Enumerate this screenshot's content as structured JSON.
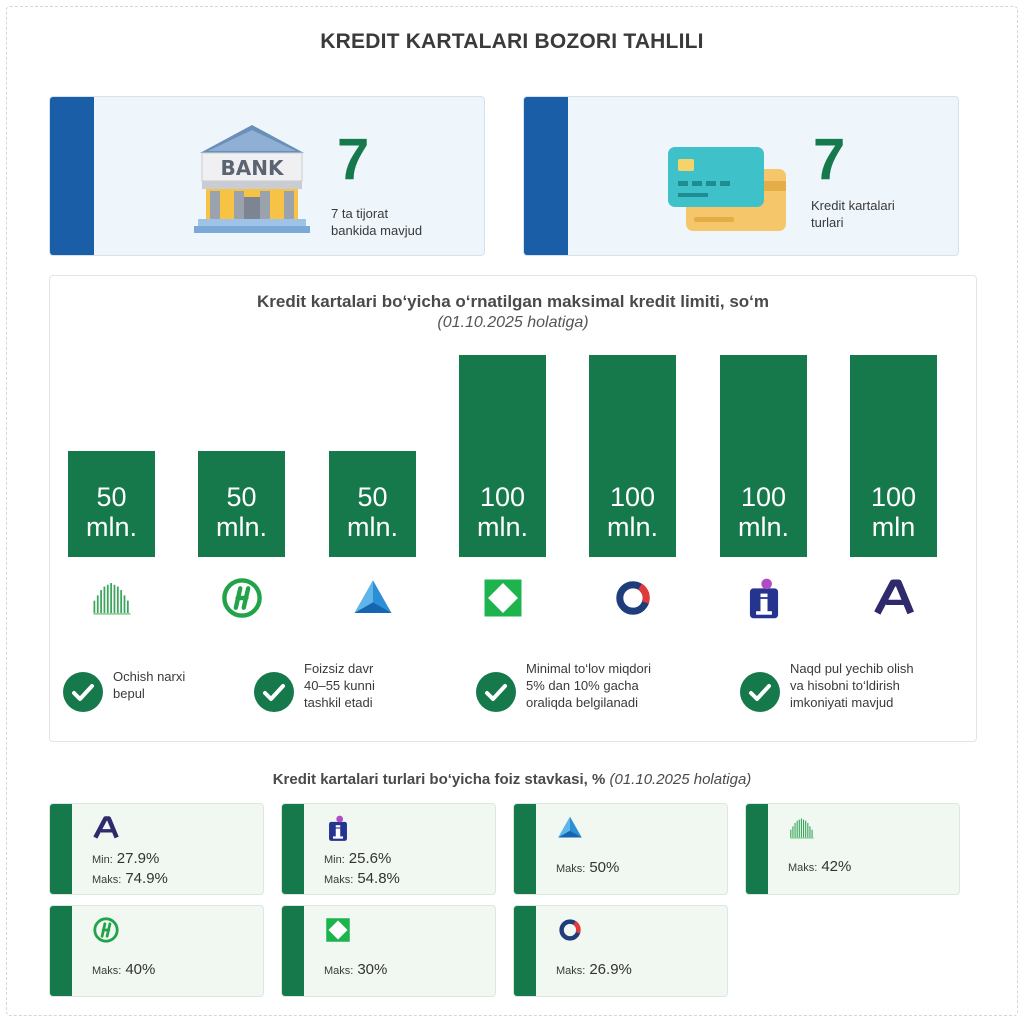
{
  "title": "KREDIT KARTALARI BOZORI TAHLILI",
  "stats": [
    {
      "icon": "bank-icon",
      "value": "7",
      "label_line1": "7 ta tijorat",
      "label_line2": "bankida mavjud"
    },
    {
      "icon": "credit-card-icon",
      "value": "7",
      "label_line1": "Kredit kartalari",
      "label_line2": "turlari"
    }
  ],
  "panel": {
    "title": "Kredit kartalari bo‘yicha o‘rnatilgan maksimal kredit limiti, so‘m",
    "subtitle": "(01.10.2025 holatiga)"
  },
  "chart_data": {
    "type": "bar",
    "title": "Kredit kartalari bo‘yicha o‘rnatilgan maksimal kredit limiti, so‘m",
    "subtitle": "(01.10.2025 holatiga)",
    "values": [
      50,
      50,
      50,
      100,
      100,
      100,
      100
    ],
    "bar_labels": [
      [
        "50",
        "mln."
      ],
      [
        "50",
        "mln."
      ],
      [
        "50",
        "mln."
      ],
      [
        "100",
        "mln."
      ],
      [
        "100",
        "mln."
      ],
      [
        "100",
        "mln."
      ],
      [
        "100",
        "mln"
      ]
    ],
    "category_icons": [
      "bank-logo-bars-icon",
      "bank-logo-h-circle-icon",
      "bank-logo-blue-triangle-icon",
      "bank-logo-green-diamond-icon",
      "bank-logo-ring-icon",
      "bank-logo-i-icon",
      "bank-logo-a-icon"
    ],
    "ylim": [
      0,
      100
    ],
    "grid": false,
    "color": "#16794c"
  },
  "features": [
    {
      "lines": [
        "Ochish narxi",
        "bepul"
      ]
    },
    {
      "lines": [
        "Foizsiz davr",
        "40–55 kunni",
        "tashkil etadi"
      ]
    },
    {
      "lines": [
        "Minimal to‘lov miqdori",
        "5% dan 10% gacha",
        "oraliqda belgilanadi"
      ]
    },
    {
      "lines": [
        "Naqd pul yechib olish",
        "va hisobni to‘ldirish",
        "imkoniyati mavjud"
      ]
    }
  ],
  "rates": {
    "title": "Kredit kartalari turlari bo‘yicha foiz stavkasi, %",
    "title_note": "(01.10.2025 holatiga)",
    "min_label": "Min:",
    "max_label": "Maks:",
    "cards": [
      {
        "icon": "bank-logo-a-icon",
        "min": "27.9%",
        "max": "74.9%"
      },
      {
        "icon": "bank-logo-i-icon",
        "min": "25.6%",
        "max": "54.8%"
      },
      {
        "icon": "bank-logo-blue-triangle-icon",
        "max": "50%"
      },
      {
        "icon": "bank-logo-bars-icon",
        "max": "42%"
      },
      {
        "icon": "bank-logo-h-circle-icon",
        "max": "40%"
      },
      {
        "icon": "bank-logo-green-diamond-icon",
        "max": "30%"
      },
      {
        "icon": "bank-logo-ring-icon",
        "max": "26.9%"
      }
    ]
  },
  "colors": {
    "accent_green": "#16794c",
    "accent_blue": "#1a5ea8"
  }
}
